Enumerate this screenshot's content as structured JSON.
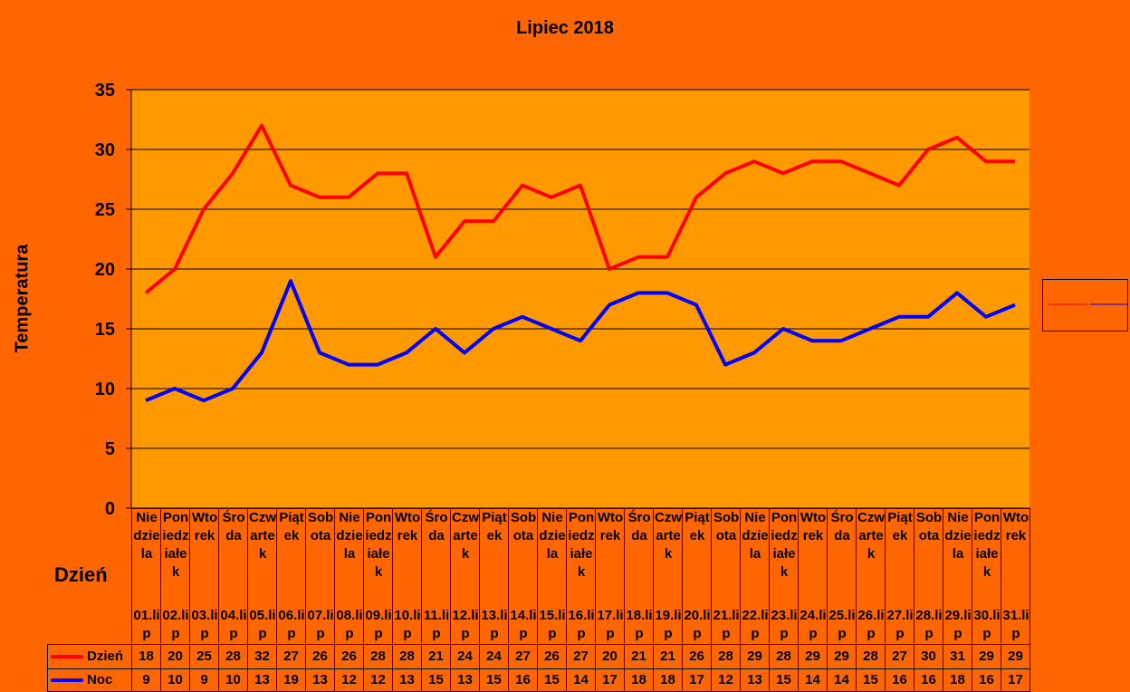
{
  "chart_data": {
    "type": "line",
    "title": "Lipiec 2018",
    "xlabel": "Dzień",
    "ylabel": "Temperatura",
    "ylim": [
      0,
      35
    ],
    "yticks": [
      0,
      5,
      10,
      15,
      20,
      25,
      30,
      35
    ],
    "grid": true,
    "legend": "right (empty box); data table below",
    "day_names": [
      "Niedziela",
      "Poniedziałek",
      "Wtorek",
      "Środa",
      "Czwartek",
      "Piątek",
      "Sobota",
      "Niedziela",
      "Poniedziałek",
      "Wtorek",
      "Środa",
      "Czwartek",
      "Piątek",
      "Sobota",
      "Niedziela",
      "Poniedziałek",
      "Wtorek",
      "Środa",
      "Czwartek",
      "Piątek",
      "Sobota",
      "Niedziela",
      "Poniedziałek",
      "Wtorek",
      "Środa",
      "Czwartek",
      "Piątek",
      "Sobota",
      "Niedziela",
      "Poniedziałek",
      "Wtorek"
    ],
    "categories": [
      "01.lip",
      "02.lip",
      "03.lip",
      "04.lip",
      "05.lip",
      "06.lip",
      "07.lip",
      "08.lip",
      "09.lip",
      "10.lip",
      "11.lip",
      "12.lip",
      "13.lip",
      "14.lip",
      "15.lip",
      "16.lip",
      "17.lip",
      "18.lip",
      "19.lip",
      "20.lip",
      "21.lip",
      "22.lip",
      "23.lip",
      "24.lip",
      "25.lip",
      "26.lip",
      "27.lip",
      "28.lip",
      "29.lip",
      "30.lip",
      "31.lip"
    ],
    "series": [
      {
        "name": "Dzień",
        "color": "#ff0000",
        "values": [
          18,
          20,
          25,
          28,
          32,
          27,
          26,
          26,
          28,
          28,
          21,
          24,
          24,
          27,
          26,
          27,
          20,
          21,
          21,
          26,
          28,
          29,
          28,
          29,
          29,
          28,
          27,
          30,
          31,
          29,
          29
        ]
      },
      {
        "name": "Noc",
        "color": "#0000ff",
        "values": [
          9,
          10,
          9,
          10,
          13,
          19,
          13,
          12,
          12,
          13,
          15,
          13,
          15,
          16,
          15,
          14,
          17,
          18,
          18,
          17,
          12,
          13,
          15,
          14,
          14,
          15,
          16,
          16,
          18,
          16,
          17
        ]
      }
    ]
  },
  "colors": {
    "background": "#ff6600",
    "plot_area": "#ff9900"
  }
}
